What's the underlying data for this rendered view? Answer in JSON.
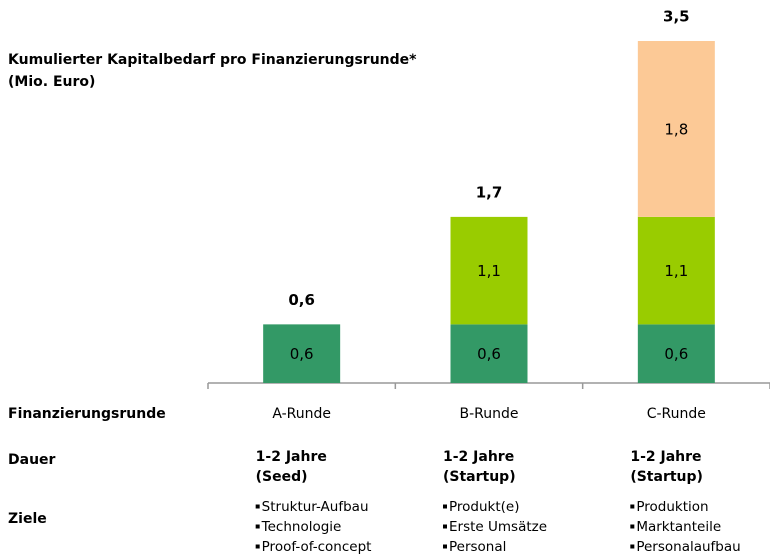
{
  "chart_data": {
    "type": "stacked-bar",
    "title": [
      "Kumulierter Kapitalbedarf pro Finanzierungsrunde*",
      "(Mio. Euro)"
    ],
    "xlabel": "Finanzierungsrunde",
    "categories": [
      "A-Runde",
      "B-Runde",
      "C-Runde"
    ],
    "series": [
      {
        "color": "#339966",
        "values": [
          0.6,
          0.6,
          0.6
        ],
        "value_labels": [
          "0,6",
          "0,6",
          "0,6"
        ]
      },
      {
        "color": "#99cc00",
        "values": [
          null,
          1.1,
          1.1
        ],
        "value_labels": [
          null,
          "1,1",
          "1,1"
        ]
      },
      {
        "color": "#fcc996",
        "values": [
          null,
          null,
          1.8
        ],
        "value_labels": [
          null,
          null,
          "1,8"
        ]
      }
    ],
    "totals": [
      0.6,
      1.7,
      3.5
    ],
    "total_labels": [
      "0,6",
      "1,7",
      "3,5"
    ],
    "ylim": [
      0,
      3.5
    ]
  },
  "table": {
    "rows": [
      {
        "label": "Dauer",
        "cells": [
          [
            "1-2 Jahre",
            "(Seed)"
          ],
          [
            "1-2 Jahre",
            "(Startup)"
          ],
          [
            "1-2 Jahre",
            "(Startup)"
          ]
        ]
      },
      {
        "label": "Ziele",
        "cells": [
          [
            "Struktur-Aufbau",
            "Technologie",
            "Proof-of-concept"
          ],
          [
            "Produkt(e)",
            "Erste Umsätze",
            "Personal"
          ],
          [
            "Produktion",
            "Marktanteile",
            "Personalaufbau"
          ]
        ]
      }
    ]
  }
}
